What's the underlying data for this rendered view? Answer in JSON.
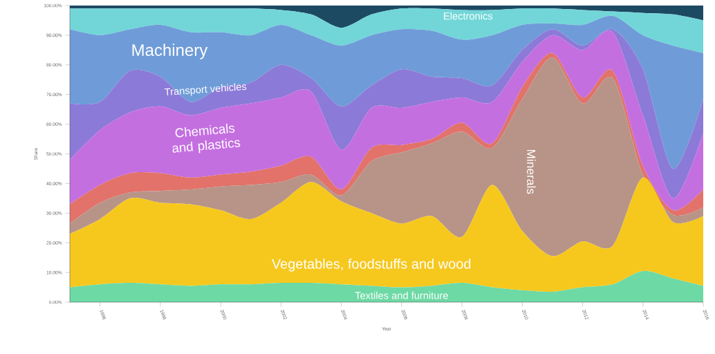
{
  "chart_data": {
    "type": "area",
    "stacked": true,
    "xlabel": "Year",
    "ylabel": "Share",
    "x": [
      1995,
      1996,
      1997,
      1998,
      1999,
      2000,
      2001,
      2002,
      2003,
      2004,
      2005,
      2006,
      2007,
      2008,
      2009,
      2010,
      2011,
      2012,
      2013,
      2014,
      2015,
      2016
    ],
    "xlim": [
      1995,
      2016
    ],
    "xticks": [
      1996,
      1998,
      2000,
      2002,
      2004,
      2006,
      2008,
      2010,
      2012,
      2014,
      2016
    ],
    "ylim": [
      0,
      100
    ],
    "yticks": [
      {
        "value": 0,
        "label": "0.00%"
      },
      {
        "value": 10,
        "label": "10.00%"
      },
      {
        "value": 20,
        "label": "20.00%"
      },
      {
        "value": 30,
        "label": "30.00%"
      },
      {
        "value": 40,
        "label": "40.00%"
      },
      {
        "value": 50,
        "label": "50.00%"
      },
      {
        "value": 60,
        "label": "60.00%"
      },
      {
        "value": 70,
        "label": "70.00%"
      },
      {
        "value": 80,
        "label": "80.00%"
      },
      {
        "value": 90,
        "label": "90.00%"
      },
      {
        "value": 100,
        "label": "100.00%"
      }
    ],
    "series": [
      {
        "name": "Textiles and furniture",
        "color": "#6dd9a5",
        "values": [
          5,
          6,
          6.5,
          6,
          5.5,
          6,
          6,
          6.5,
          6.5,
          6,
          5.5,
          5,
          5.5,
          6.5,
          5,
          4,
          3.5,
          5,
          6,
          10.5,
          8,
          5.5
        ]
      },
      {
        "name": "Vegetables, foodstuffs and wood",
        "color": "#f6c81e",
        "values": [
          18,
          22,
          28.5,
          27.5,
          27.5,
          25,
          22,
          27,
          34,
          28,
          24.5,
          21.5,
          23.5,
          15.5,
          34.5,
          20,
          12,
          15.5,
          13,
          31.5,
          19,
          23.5
        ]
      },
      {
        "name": "Minerals",
        "color": "#b89488",
        "values": [
          3.5,
          5.5,
          2,
          4,
          5,
          8,
          11.5,
          7,
          2.5,
          2,
          17.5,
          24,
          24.5,
          35.5,
          12.5,
          44.5,
          67,
          46.5,
          56.5,
          1,
          2.5,
          3
        ]
      },
      {
        "color": "#e2726a",
        "values": [
          6.5,
          6,
          6.5,
          6,
          4,
          4,
          4.5,
          5.5,
          6,
          2,
          4.5,
          2.5,
          1.5,
          3,
          1.5,
          4,
          1.5,
          2,
          2.5,
          3,
          1.5,
          6
        ]
      },
      {
        "name": "Chemicals and plastics",
        "color": "#c46fe0",
        "values": [
          15,
          18.5,
          20.5,
          22.5,
          21,
          22.5,
          23,
          23,
          22,
          13.5,
          13.5,
          12.5,
          12.5,
          8.5,
          14,
          8.5,
          6,
          16,
          13,
          17,
          4,
          19
        ]
      },
      {
        "name": "Transport vehicles",
        "color": "#8c7ad8",
        "values": [
          19,
          9.5,
          14,
          10,
          4.5,
          7,
          7,
          11,
          4.5,
          14.5,
          7.5,
          13,
          8.5,
          6.5,
          5.5,
          4,
          2,
          1.5,
          1,
          15.5,
          10,
          11.5
        ]
      },
      {
        "name": "Machinery",
        "color": "#6f9cd8",
        "values": [
          25,
          22.5,
          14,
          17.5,
          23.5,
          18.5,
          16,
          13.5,
          14.5,
          20.5,
          17,
          13.5,
          15.5,
          13,
          17,
          8.5,
          2,
          7,
          4.5,
          11.5,
          41.5,
          15.5
        ]
      },
      {
        "name": "Electronics",
        "color": "#72d6d8",
        "values": [
          7,
          9,
          7,
          5.5,
          8,
          8,
          9,
          5,
          7,
          6,
          7,
          7,
          7.5,
          10,
          8.5,
          5.5,
          5,
          5,
          1.5,
          7.5,
          10.5,
          11
        ]
      },
      {
        "color": "#1d4a63",
        "values": [
          1,
          1,
          1,
          1,
          1,
          1,
          1,
          1.5,
          3,
          7.5,
          3,
          1,
          1,
          1.5,
          1.5,
          1,
          1,
          1.5,
          2,
          2.5,
          3,
          5
        ]
      }
    ]
  }
}
